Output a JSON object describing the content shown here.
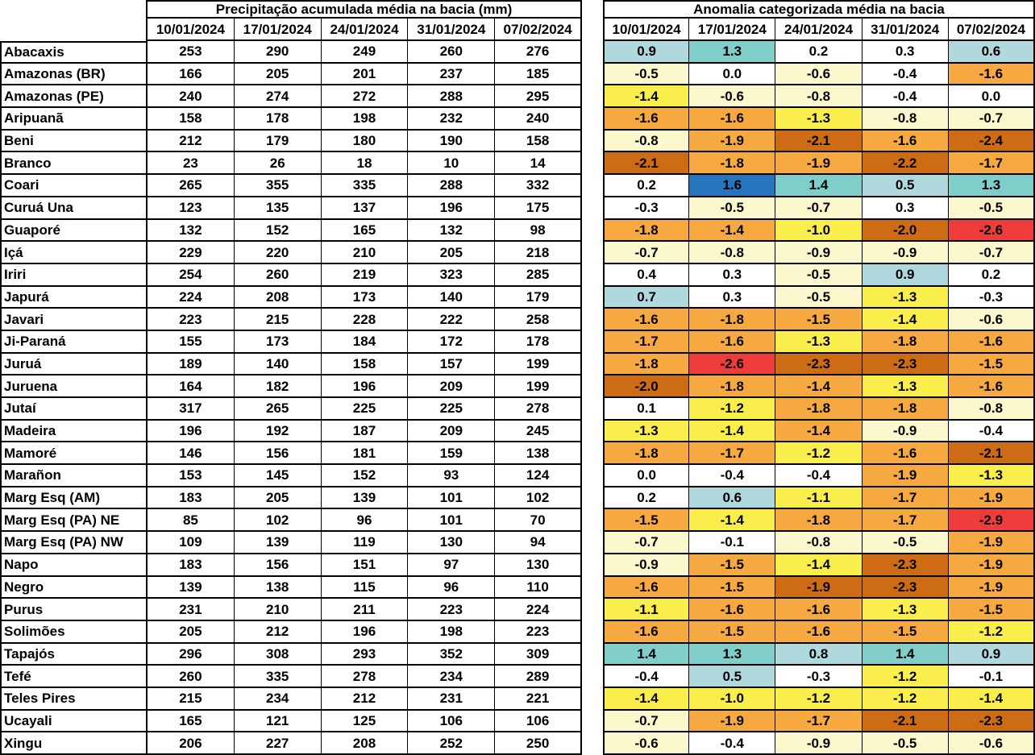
{
  "palette": {
    "blue": "#2474BE",
    "teal": "#7FCEC9",
    "lightblue": "#AFD9DC",
    "white": "#FFFFFF",
    "cream": "#FCF8CE",
    "yellow": "#FAEE4D",
    "orange": "#F7A941",
    "darkorange": "#CE6C15",
    "red": "#EE3B3B"
  },
  "chart_data": [
    {
      "type": "table",
      "title": "Precipitação acumulada média na bacia (mm)",
      "columns": [
        "10/01/2024",
        "17/01/2024",
        "24/01/2024",
        "31/01/2024",
        "07/02/2024"
      ],
      "row_header": "bacia",
      "rows": [
        {
          "basin": "Abacaxis",
          "values": [
            253,
            290,
            249,
            260,
            276
          ]
        },
        {
          "basin": "Amazonas (BR)",
          "values": [
            166,
            205,
            201,
            237,
            185
          ]
        },
        {
          "basin": "Amazonas (PE)",
          "values": [
            240,
            274,
            272,
            288,
            295
          ]
        },
        {
          "basin": "Aripuanã",
          "values": [
            158,
            178,
            198,
            232,
            240
          ]
        },
        {
          "basin": "Beni",
          "values": [
            212,
            179,
            180,
            190,
            158
          ]
        },
        {
          "basin": "Branco",
          "values": [
            23,
            26,
            18,
            10,
            14
          ]
        },
        {
          "basin": "Coari",
          "values": [
            265,
            355,
            335,
            288,
            332
          ]
        },
        {
          "basin": "Curuá Una",
          "values": [
            123,
            135,
            137,
            196,
            175
          ]
        },
        {
          "basin": "Guaporé",
          "values": [
            132,
            152,
            165,
            132,
            98
          ]
        },
        {
          "basin": "Içá",
          "values": [
            229,
            220,
            210,
            205,
            218
          ]
        },
        {
          "basin": "Iriri",
          "values": [
            254,
            260,
            219,
            323,
            285
          ]
        },
        {
          "basin": "Japurá",
          "values": [
            224,
            208,
            173,
            140,
            179
          ]
        },
        {
          "basin": "Javari",
          "values": [
            223,
            215,
            228,
            222,
            258
          ]
        },
        {
          "basin": "Ji-Paraná",
          "values": [
            155,
            173,
            184,
            172,
            178
          ]
        },
        {
          "basin": "Juruá",
          "values": [
            189,
            140,
            158,
            157,
            199
          ]
        },
        {
          "basin": "Juruena",
          "values": [
            164,
            182,
            196,
            209,
            199
          ]
        },
        {
          "basin": "Jutaí",
          "values": [
            317,
            265,
            225,
            225,
            278
          ]
        },
        {
          "basin": "Madeira",
          "values": [
            196,
            192,
            187,
            209,
            245
          ]
        },
        {
          "basin": "Mamoré",
          "values": [
            146,
            156,
            181,
            159,
            138
          ]
        },
        {
          "basin": "Marañon",
          "values": [
            153,
            145,
            152,
            93,
            124
          ]
        },
        {
          "basin": "Marg Esq (AM)",
          "values": [
            183,
            205,
            139,
            101,
            102
          ]
        },
        {
          "basin": "Marg Esq (PA) NE",
          "values": [
            85,
            102,
            96,
            101,
            70
          ]
        },
        {
          "basin": "Marg Esq (PA) NW",
          "values": [
            109,
            139,
            119,
            130,
            94
          ]
        },
        {
          "basin": "Napo",
          "values": [
            183,
            156,
            151,
            97,
            130
          ]
        },
        {
          "basin": "Negro",
          "values": [
            139,
            138,
            115,
            96,
            110
          ]
        },
        {
          "basin": "Purus",
          "values": [
            231,
            210,
            211,
            223,
            224
          ]
        },
        {
          "basin": "Solimões",
          "values": [
            205,
            212,
            196,
            198,
            223
          ]
        },
        {
          "basin": "Tapajós",
          "values": [
            296,
            308,
            293,
            352,
            309
          ]
        },
        {
          "basin": "Tefé",
          "values": [
            260,
            335,
            278,
            234,
            289
          ]
        },
        {
          "basin": "Teles Pires",
          "values": [
            215,
            234,
            212,
            231,
            221
          ]
        },
        {
          "basin": "Ucayali",
          "values": [
            165,
            121,
            125,
            106,
            106
          ]
        },
        {
          "basin": "Xingu",
          "values": [
            206,
            227,
            208,
            252,
            250
          ]
        }
      ]
    },
    {
      "type": "heatmap",
      "title": "Anomalia categorizada média na bacia",
      "columns": [
        "10/01/2024",
        "17/01/2024",
        "24/01/2024",
        "31/01/2024",
        "07/02/2024"
      ],
      "row_header": "bacia",
      "rows": [
        {
          "basin": "Abacaxis",
          "values": [
            "0.9",
            "1.3",
            "0.2",
            "0.3",
            "0.6"
          ],
          "colors": [
            "lightblue",
            "teal",
            "white",
            "white",
            "lightblue"
          ]
        },
        {
          "basin": "Amazonas (BR)",
          "values": [
            "-0.5",
            "0.0",
            "-0.6",
            "-0.4",
            "-1.6"
          ],
          "colors": [
            "cream",
            "white",
            "cream",
            "white",
            "orange"
          ]
        },
        {
          "basin": "Amazonas (PE)",
          "values": [
            "-1.4",
            "-0.6",
            "-0.8",
            "-0.4",
            "0.0"
          ],
          "colors": [
            "yellow",
            "cream",
            "cream",
            "white",
            "white"
          ]
        },
        {
          "basin": "Aripuanã",
          "values": [
            "-1.6",
            "-1.6",
            "-1.3",
            "-0.8",
            "-0.7"
          ],
          "colors": [
            "orange",
            "orange",
            "yellow",
            "cream",
            "cream"
          ]
        },
        {
          "basin": "Beni",
          "values": [
            "-0.8",
            "-1.9",
            "-2.1",
            "-1.6",
            "-2.4"
          ],
          "colors": [
            "cream",
            "orange",
            "darkorange",
            "orange",
            "darkorange"
          ]
        },
        {
          "basin": "Branco",
          "values": [
            "-2.1",
            "-1.8",
            "-1.9",
            "-2.2",
            "-1.7"
          ],
          "colors": [
            "darkorange",
            "orange",
            "orange",
            "darkorange",
            "orange"
          ]
        },
        {
          "basin": "Coari",
          "values": [
            "0.2",
            "1.6",
            "1.4",
            "0.5",
            "1.3"
          ],
          "colors": [
            "white",
            "blue",
            "teal",
            "lightblue",
            "teal"
          ]
        },
        {
          "basin": "Curuá Una",
          "values": [
            "-0.3",
            "-0.5",
            "-0.7",
            "0.3",
            "-0.5"
          ],
          "colors": [
            "white",
            "cream",
            "cream",
            "white",
            "cream"
          ]
        },
        {
          "basin": "Guaporé",
          "values": [
            "-1.8",
            "-1.4",
            "-1.0",
            "-2.0",
            "-2.6"
          ],
          "colors": [
            "orange",
            "orange",
            "yellow",
            "darkorange",
            "red"
          ]
        },
        {
          "basin": "Içá",
          "values": [
            "-0.7",
            "-0.8",
            "-0.9",
            "-0.9",
            "-0.7"
          ],
          "colors": [
            "cream",
            "cream",
            "cream",
            "cream",
            "cream"
          ]
        },
        {
          "basin": "Iriri",
          "values": [
            "0.4",
            "0.3",
            "-0.5",
            "0.9",
            "0.2"
          ],
          "colors": [
            "white",
            "white",
            "cream",
            "lightblue",
            "white"
          ]
        },
        {
          "basin": "Japurá",
          "values": [
            "0.7",
            "0.3",
            "-0.5",
            "-1.3",
            "-0.3"
          ],
          "colors": [
            "lightblue",
            "white",
            "cream",
            "yellow",
            "white"
          ]
        },
        {
          "basin": "Javari",
          "values": [
            "-1.6",
            "-1.8",
            "-1.5",
            "-1.4",
            "-0.6"
          ],
          "colors": [
            "orange",
            "orange",
            "orange",
            "yellow",
            "cream"
          ]
        },
        {
          "basin": "Ji-Paraná",
          "values": [
            "-1.7",
            "-1.6",
            "-1.3",
            "-1.8",
            "-1.6"
          ],
          "colors": [
            "orange",
            "orange",
            "yellow",
            "orange",
            "orange"
          ]
        },
        {
          "basin": "Juruá",
          "values": [
            "-1.8",
            "-2.6",
            "-2.3",
            "-2.3",
            "-1.5"
          ],
          "colors": [
            "orange",
            "red",
            "darkorange",
            "darkorange",
            "orange"
          ]
        },
        {
          "basin": "Juruena",
          "values": [
            "-2.0",
            "-1.8",
            "-1.4",
            "-1.3",
            "-1.6"
          ],
          "colors": [
            "darkorange",
            "orange",
            "orange",
            "yellow",
            "orange"
          ]
        },
        {
          "basin": "Jutaí",
          "values": [
            "0.1",
            "-1.2",
            "-1.8",
            "-1.8",
            "-0.8"
          ],
          "colors": [
            "white",
            "yellow",
            "orange",
            "orange",
            "cream"
          ]
        },
        {
          "basin": "Madeira",
          "values": [
            "-1.3",
            "-1.4",
            "-1.4",
            "-0.9",
            "-0.4"
          ],
          "colors": [
            "yellow",
            "yellow",
            "orange",
            "cream",
            "white"
          ]
        },
        {
          "basin": "Mamoré",
          "values": [
            "-1.8",
            "-1.7",
            "-1.2",
            "-1.6",
            "-2.1"
          ],
          "colors": [
            "orange",
            "orange",
            "yellow",
            "orange",
            "darkorange"
          ]
        },
        {
          "basin": "Marañon",
          "values": [
            "0.0",
            "-0.4",
            "-0.4",
            "-1.9",
            "-1.3"
          ],
          "colors": [
            "white",
            "white",
            "white",
            "orange",
            "yellow"
          ]
        },
        {
          "basin": "Marg Esq (AM)",
          "values": [
            "0.2",
            "0.6",
            "-1.1",
            "-1.7",
            "-1.9"
          ],
          "colors": [
            "white",
            "lightblue",
            "yellow",
            "orange",
            "orange"
          ]
        },
        {
          "basin": "Marg Esq (PA) NE",
          "values": [
            "-1.5",
            "-1.4",
            "-1.8",
            "-1.7",
            "-2.9"
          ],
          "colors": [
            "orange",
            "yellow",
            "orange",
            "orange",
            "red"
          ]
        },
        {
          "basin": "Marg Esq (PA) NW",
          "values": [
            "-0.7",
            "-0.1",
            "-0.8",
            "-0.5",
            "-1.9"
          ],
          "colors": [
            "cream",
            "white",
            "cream",
            "cream",
            "orange"
          ]
        },
        {
          "basin": "Napo",
          "values": [
            "-0.9",
            "-1.5",
            "-1.4",
            "-2.3",
            "-1.9"
          ],
          "colors": [
            "cream",
            "orange",
            "yellow",
            "darkorange",
            "orange"
          ]
        },
        {
          "basin": "Negro",
          "values": [
            "-1.6",
            "-1.5",
            "-1.9",
            "-2.3",
            "-1.9"
          ],
          "colors": [
            "orange",
            "orange",
            "darkorange",
            "darkorange",
            "orange"
          ]
        },
        {
          "basin": "Purus",
          "values": [
            "-1.1",
            "-1.6",
            "-1.6",
            "-1.3",
            "-1.5"
          ],
          "colors": [
            "yellow",
            "orange",
            "orange",
            "yellow",
            "orange"
          ]
        },
        {
          "basin": "Solimões",
          "values": [
            "-1.6",
            "-1.5",
            "-1.6",
            "-1.5",
            "-1.2"
          ],
          "colors": [
            "orange",
            "orange",
            "orange",
            "orange",
            "yellow"
          ]
        },
        {
          "basin": "Tapajós",
          "values": [
            "1.4",
            "1.3",
            "0.8",
            "1.4",
            "0.9"
          ],
          "colors": [
            "teal",
            "teal",
            "lightblue",
            "teal",
            "lightblue"
          ]
        },
        {
          "basin": "Tefé",
          "values": [
            "-0.4",
            "0.5",
            "-0.3",
            "-1.2",
            "-0.1"
          ],
          "colors": [
            "white",
            "lightblue",
            "white",
            "yellow",
            "white"
          ]
        },
        {
          "basin": "Teles Pires",
          "values": [
            "-1.4",
            "-1.0",
            "-1.2",
            "-1.2",
            "-1.4"
          ],
          "colors": [
            "yellow",
            "yellow",
            "yellow",
            "yellow",
            "yellow"
          ]
        },
        {
          "basin": "Ucayali",
          "values": [
            "-0.7",
            "-1.9",
            "-1.7",
            "-2.1",
            "-2.3"
          ],
          "colors": [
            "cream",
            "orange",
            "orange",
            "darkorange",
            "darkorange"
          ]
        },
        {
          "basin": "Xingu",
          "values": [
            "-0.6",
            "-0.4",
            "-0.9",
            "-0.5",
            "-0.6"
          ],
          "colors": [
            "cream",
            "white",
            "cream",
            "cream",
            "cream"
          ]
        }
      ]
    }
  ]
}
